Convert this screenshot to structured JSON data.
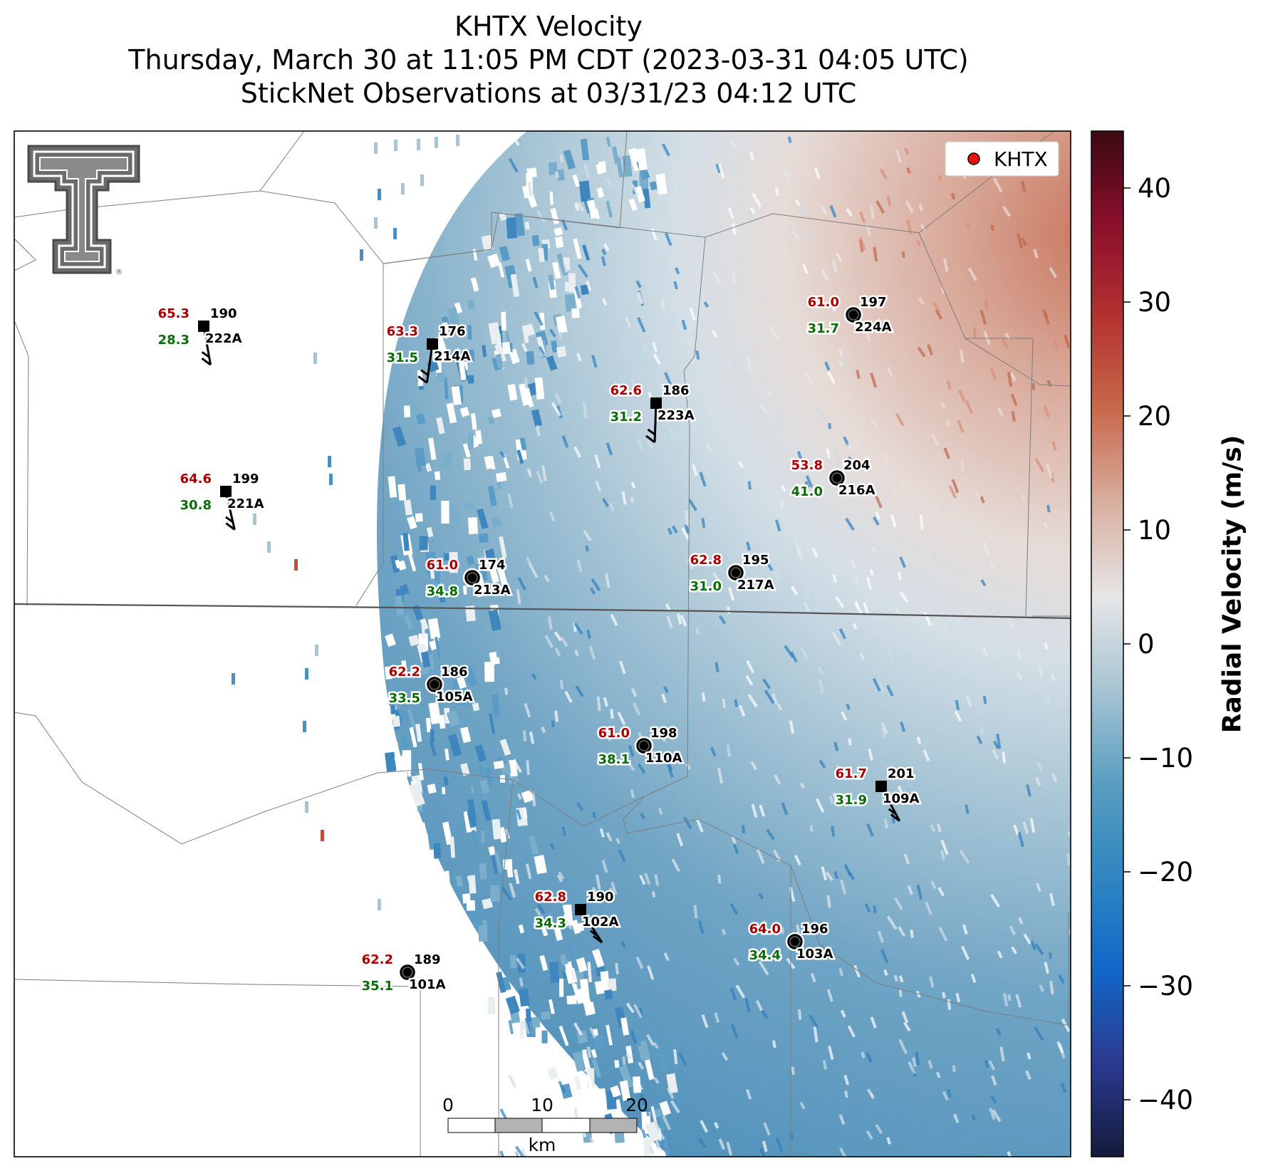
{
  "title": {
    "line1": "KHTX Velocity",
    "line2": "Thursday, March 30 at 11:05 PM CDT (2023-03-31 04:05 UTC)",
    "line3": "StickNet Observations at 03/31/23 04:12 UTC"
  },
  "legend": {
    "marker_label": "KHTX",
    "marker_color": "#e8120c",
    "placement": "upper-right"
  },
  "logo": {
    "name": "Texas Tech Double T",
    "mark": "®"
  },
  "colorbar": {
    "label": "Radial Velocity (m/s)",
    "min": -45,
    "max": 45,
    "ticks": [
      40,
      30,
      20,
      10,
      0,
      -10,
      -20,
      -30,
      -40
    ],
    "tick_labels": [
      "40",
      "30",
      "20",
      "10",
      "0",
      "−10",
      "−20",
      "−30",
      "−40"
    ],
    "colormap": [
      "#141b3d",
      "#2b3a8f",
      "#1167c8",
      "#2f86c0",
      "#5a9ec0",
      "#a6c4d2",
      "#e6e6e6",
      "#d9b0a0",
      "#c86a4c",
      "#b3322f",
      "#8c0f2c",
      "#3a0a12"
    ]
  },
  "scalebar": {
    "ticks": [
      "0",
      "10",
      "20"
    ],
    "unit": "km"
  },
  "stations": [
    {
      "id": "222A",
      "temp": "65.3",
      "dir": "190",
      "dew": "28.3",
      "type": "square"
    },
    {
      "id": "214A",
      "temp": "63.3",
      "dir": "176",
      "dew": "31.5",
      "type": "square"
    },
    {
      "id": "224A",
      "temp": "61.0",
      "dir": "197",
      "dew": "31.7",
      "type": "circle"
    },
    {
      "id": "223A",
      "temp": "62.6",
      "dir": "186",
      "dew": "31.2",
      "type": "square"
    },
    {
      "id": "216A",
      "temp": "53.8",
      "dir": "204",
      "dew": "41.0",
      "type": "circle"
    },
    {
      "id": "221A",
      "temp": "64.6",
      "dir": "199",
      "dew": "30.8",
      "type": "square"
    },
    {
      "id": "213A",
      "temp": "61.0",
      "dir": "174",
      "dew": "34.8",
      "type": "circle"
    },
    {
      "id": "217A",
      "temp": "62.8",
      "dir": "195",
      "dew": "31.0",
      "type": "circle"
    },
    {
      "id": "105A",
      "temp": "62.2",
      "dir": "186",
      "dew": "33.5",
      "type": "circle"
    },
    {
      "id": "110A",
      "temp": "61.0",
      "dir": "198",
      "dew": "38.1",
      "type": "circle"
    },
    {
      "id": "109A",
      "temp": "61.7",
      "dir": "201",
      "dew": "31.9",
      "type": "square"
    },
    {
      "id": "102A",
      "temp": "62.8",
      "dir": "190",
      "dew": "34.3",
      "type": "square"
    },
    {
      "id": "103A",
      "temp": "64.0",
      "dir": "196",
      "dew": "34.4",
      "type": "circle"
    },
    {
      "id": "101A",
      "temp": "62.2",
      "dir": "189",
      "dew": "35.1",
      "type": "circle"
    }
  ]
}
